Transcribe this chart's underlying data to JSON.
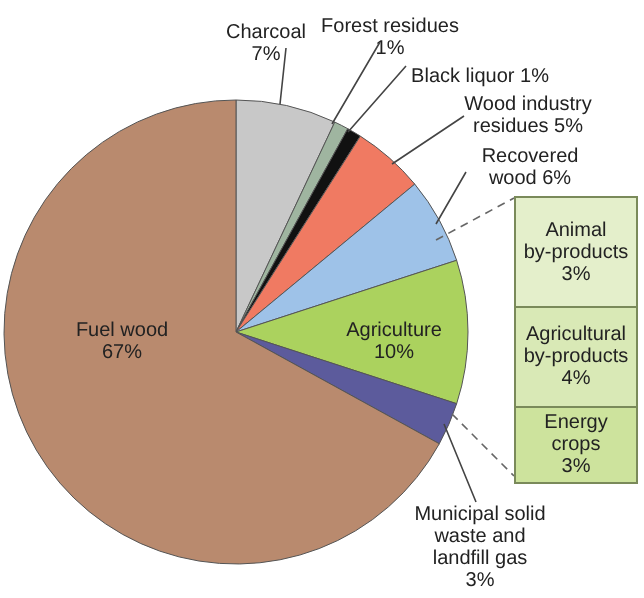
{
  "chart_data": {
    "type": "pie",
    "categories": [
      "Charcoal",
      "Forest residues",
      "Black liquor",
      "Wood industry residues",
      "Recovered wood",
      "Agriculture",
      "Municipal solid waste and landfill gas",
      "Fuel wood"
    ],
    "values": [
      7,
      1,
      1,
      5,
      6,
      10,
      3,
      67
    ],
    "value_labels": [
      "7%",
      "1%",
      "1%",
      "5%",
      "6%",
      "10%",
      "3%",
      "67%"
    ],
    "colors": [
      "#c8c8c8",
      "#9fb5a0",
      "#111111",
      "#f07a62",
      "#9ec2e8",
      "#abd25e",
      "#5c5b9c",
      "#b98a6e"
    ],
    "annotations": [
      "Animal by-products 3%",
      "Agricultural by-products 4%",
      "Energy crops 3%"
    ]
  }
}
